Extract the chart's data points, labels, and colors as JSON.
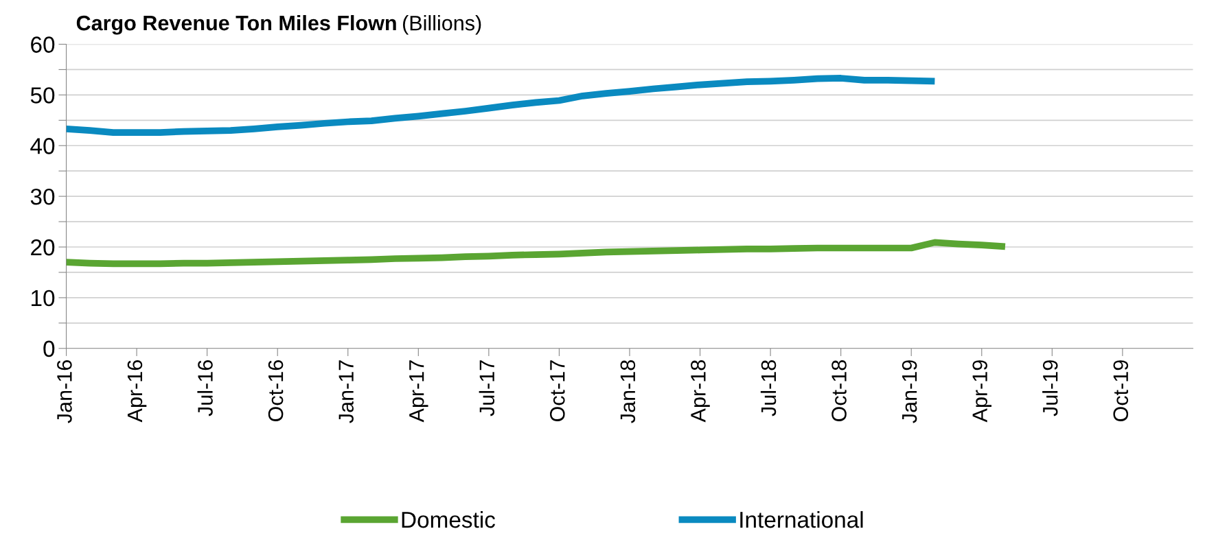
{
  "chart_data": {
    "type": "line",
    "title": "Cargo Revenue Ton Miles Flown",
    "subtitle": "(Billions)",
    "categories": [
      "Jan-16",
      null,
      null,
      "Apr-16",
      null,
      null,
      "Jul-16",
      null,
      null,
      "Oct-16",
      null,
      null,
      "Jan-17",
      null,
      null,
      "Apr-17",
      null,
      null,
      "Jul-17",
      null,
      null,
      "Oct-17",
      null,
      null,
      "Jan-18",
      null,
      null,
      "Apr-18",
      null,
      null,
      "Jul-18",
      null,
      null,
      "Oct-18",
      null,
      null,
      "Jan-19",
      null,
      null,
      "Apr-19",
      null,
      null,
      "Jul-19",
      null,
      null,
      "Oct-19",
      null,
      null
    ],
    "series": [
      {
        "name": "Domestic",
        "color": "#5aa532",
        "values": [
          17.0,
          16.8,
          16.7,
          16.7,
          16.7,
          16.8,
          16.8,
          16.9,
          17.0,
          17.1,
          17.2,
          17.3,
          17.4,
          17.5,
          17.7,
          17.8,
          17.9,
          18.1,
          18.2,
          18.4,
          18.5,
          18.6,
          18.8,
          19.0,
          19.1,
          19.2,
          19.3,
          19.4,
          19.5,
          19.6,
          19.6,
          19.7,
          19.8,
          19.8,
          19.8,
          19.8,
          19.8,
          20.9,
          20.6,
          20.4,
          20.1,
          null,
          null,
          null,
          null,
          null,
          null,
          null
        ]
      },
      {
        "name": "International",
        "color": "#0a8ac0",
        "values": [
          43.3,
          43.0,
          42.6,
          42.6,
          42.6,
          42.8,
          42.9,
          43.0,
          43.3,
          43.7,
          44.0,
          44.4,
          44.7,
          44.9,
          45.4,
          45.8,
          46.3,
          46.8,
          47.4,
          48.0,
          48.5,
          48.9,
          49.8,
          50.3,
          50.7,
          51.2,
          51.6,
          52.0,
          52.3,
          52.6,
          52.7,
          52.9,
          53.2,
          53.3,
          52.9,
          52.9,
          52.8,
          52.7,
          null,
          null,
          null,
          null,
          null,
          null,
          null,
          null,
          null,
          null
        ]
      }
    ],
    "ylim": [
      0,
      60
    ],
    "yticks": [
      0,
      {
        "value": 5,
        "label": null
      },
      10,
      {
        "value": 15,
        "label": null
      },
      20,
      {
        "value": 25,
        "label": null
      },
      30,
      {
        "value": 35,
        "label": null
      },
      40,
      {
        "value": 45,
        "label": null
      },
      50,
      {
        "value": 55,
        "label": null
      },
      60
    ],
    "grid": "y",
    "legend": "bottom",
    "marker": "none",
    "line_style": "solid"
  }
}
